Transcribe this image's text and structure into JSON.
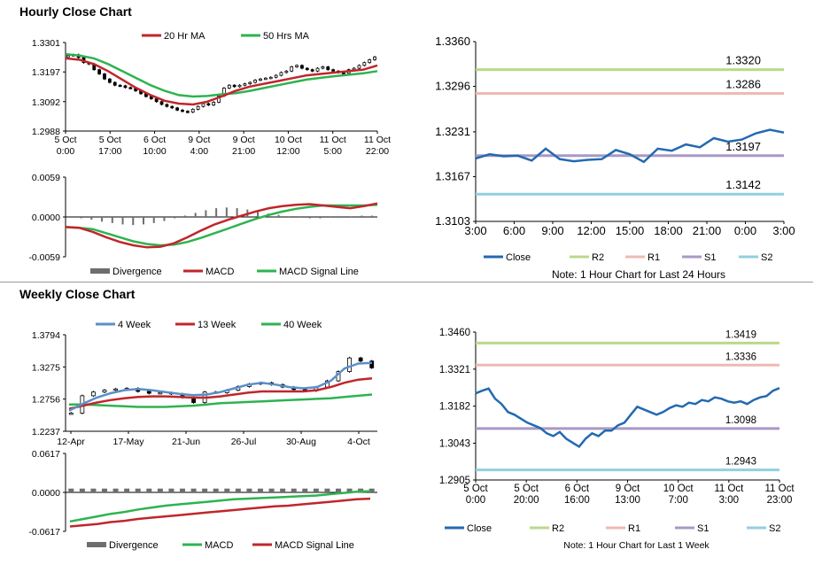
{
  "sections": {
    "hourly_title": "Hourly Close Chart",
    "weekly_title": "Weekly Close Chart"
  },
  "colors": {
    "ma_short": "#c0262b",
    "ma_long": "#2eb350",
    "ma_4wk": "#5b8fc9",
    "close": "#2369b0",
    "r2": "#b9d98a",
    "r1": "#efb9b3",
    "s1": "#a899c6",
    "s2": "#91cfdf",
    "divergence": "#6e6e6e"
  },
  "chart_data": [
    {
      "id": "hourly_price",
      "type": "line",
      "title": "",
      "legend": [
        "20 Hr MA",
        "50 Hrs MA"
      ],
      "legend_position": "top",
      "x_ticks": [
        [
          "5 Oct",
          "0:00"
        ],
        [
          "5 Oct",
          "17:00"
        ],
        [
          "6 Oct",
          "10:00"
        ],
        [
          "9 Oct",
          "4:00"
        ],
        [
          "9 Oct",
          "21:00"
        ],
        [
          "10 Oct",
          "12:00"
        ],
        [
          "11 Oct",
          "5:00"
        ],
        [
          "11 Oct",
          "22:00"
        ]
      ],
      "ylim": [
        1.2988,
        1.3301
      ],
      "y_ticks": [
        "1.3301",
        "1.3197",
        "1.3092",
        "1.2988"
      ],
      "candles": [
        1.3255,
        1.3258,
        1.3248,
        1.323,
        1.3225,
        1.3205,
        1.319,
        1.3172,
        1.316,
        1.315,
        1.3148,
        1.3142,
        1.314,
        1.313,
        1.312,
        1.311,
        1.3102,
        1.3092,
        1.3082,
        1.3075,
        1.307,
        1.3062,
        1.3058,
        1.3055,
        1.3065,
        1.3075,
        1.3085,
        1.308,
        1.309,
        1.3112,
        1.314,
        1.315,
        1.3145,
        1.315,
        1.3155,
        1.316,
        1.3168,
        1.3172,
        1.3175,
        1.3178,
        1.3185,
        1.3195,
        1.32,
        1.3215,
        1.322,
        1.321,
        1.3205,
        1.32,
        1.321,
        1.3215,
        1.3205,
        1.32,
        1.3195,
        1.3192,
        1.3205,
        1.321,
        1.322,
        1.323,
        1.324,
        1.325
      ],
      "series": [
        {
          "name": "20 Hr MA",
          "values": [
            1.3245,
            1.324,
            1.3225,
            1.32,
            1.317,
            1.314,
            1.3115,
            1.3095,
            1.3085,
            1.3082,
            1.3092,
            1.311,
            1.313,
            1.3145,
            1.3155,
            1.3165,
            1.3175,
            1.3185,
            1.319,
            1.3195,
            1.32,
            1.3205,
            1.322
          ]
        },
        {
          "name": "50 Hrs MA",
          "values": [
            1.326,
            1.3255,
            1.3245,
            1.3225,
            1.32,
            1.3175,
            1.315,
            1.313,
            1.3115,
            1.311,
            1.3112,
            1.3118,
            1.3122,
            1.313,
            1.314,
            1.315,
            1.316,
            1.317,
            1.3176,
            1.3182,
            1.3187,
            1.3192,
            1.32
          ]
        }
      ]
    },
    {
      "id": "hourly_macd",
      "type": "line",
      "title": "",
      "ylim": [
        -0.0059,
        0.0059
      ],
      "y_ticks": [
        "0.0059",
        "0.0000",
        "-0.0059"
      ],
      "legend": [
        "Divergence",
        "MACD",
        "MACD Signal Line"
      ],
      "legend_position": "bottom",
      "divergence": [
        0,
        -0.0002,
        -0.0004,
        -0.0007,
        -0.0009,
        -0.0011,
        -0.0012,
        -0.0011,
        -0.0009,
        -0.0006,
        -0.0002,
        0.0002,
        0.0006,
        0.001,
        0.0013,
        0.0014,
        0.0013,
        0.0011,
        0.0008,
        0.0005,
        0.0003,
        0.0001,
        -0.0001,
        -0.0002,
        -0.0002,
        -0.0001,
        0,
        0.0001,
        0.0002,
        0.0002
      ],
      "series": [
        {
          "name": "MACD",
          "values": [
            -0.0015,
            -0.0016,
            -0.0022,
            -0.003,
            -0.0037,
            -0.0042,
            -0.0045,
            -0.0044,
            -0.0039,
            -0.003,
            -0.002,
            -0.0011,
            -0.0004,
            0.0002,
            0.0008,
            0.0013,
            0.0016,
            0.0018,
            0.0019,
            0.0017,
            0.0015,
            0.0013,
            0.0016,
            0.002
          ]
        },
        {
          "name": "MACD Signal Line",
          "values": [
            -0.0015,
            -0.0016,
            -0.0018,
            -0.0024,
            -0.003,
            -0.0036,
            -0.004,
            -0.0042,
            -0.0041,
            -0.0037,
            -0.0031,
            -0.0024,
            -0.0017,
            -0.001,
            -0.0003,
            0.0003,
            0.0008,
            0.0012,
            0.0015,
            0.0017,
            0.0017,
            0.0017,
            0.0017,
            0.0018
          ]
        }
      ]
    },
    {
      "id": "hourly_levels",
      "type": "line",
      "title": "",
      "x_ticks": [
        "3:00",
        "6:00",
        "9:00",
        "12:00",
        "15:00",
        "18:00",
        "21:00",
        "0:00",
        "3:00"
      ],
      "ylim": [
        1.3103,
        1.336
      ],
      "y_ticks": [
        "1.3360",
        "1.3296",
        "1.3231",
        "1.3167",
        "1.3103"
      ],
      "levels": [
        {
          "name": "R2",
          "value": 1.332,
          "label": "1.3320"
        },
        {
          "name": "R1",
          "value": 1.3286,
          "label": "1.3286"
        },
        {
          "name": "S1",
          "value": 1.3197,
          "label": "1.3197"
        },
        {
          "name": "S2",
          "value": 1.3142,
          "label": "1.3142"
        }
      ],
      "series": [
        {
          "name": "Close",
          "values": [
            1.3193,
            1.3199,
            1.3196,
            1.3197,
            1.319,
            1.3207,
            1.3192,
            1.3189,
            1.3191,
            1.3192,
            1.3205,
            1.3199,
            1.3188,
            1.3207,
            1.3204,
            1.3213,
            1.3209,
            1.3222,
            1.3217,
            1.322,
            1.3229,
            1.3234,
            1.323
          ]
        }
      ],
      "legend": [
        "Close",
        "R2",
        "R1",
        "S1",
        "S2"
      ],
      "legend_position": "bottom",
      "note": "Note: 1 Hour Chart for Last 24 Hours"
    },
    {
      "id": "weekly_price",
      "type": "line",
      "title": "",
      "legend": [
        "4 Week",
        "13 Week",
        "40 Week"
      ],
      "legend_position": "top",
      "x_ticks": [
        "12-Apr",
        "17-May",
        "21-Jun",
        "26-Jul",
        "30-Aug",
        "4-Oct"
      ],
      "ylim": [
        1.2237,
        1.3794
      ],
      "y_ticks": [
        "1.3794",
        "1.3275",
        "1.2756",
        "1.2237"
      ],
      "candles": [
        1.253,
        1.281,
        1.287,
        1.29,
        1.292,
        1.293,
        1.288,
        1.285,
        1.286,
        1.284,
        1.278,
        1.27,
        1.287,
        1.286,
        1.29,
        1.296,
        1.3,
        1.302,
        1.299,
        1.295,
        1.291,
        1.289,
        1.295,
        1.305,
        1.32,
        1.342,
        1.337,
        1.326
      ],
      "series": [
        {
          "name": "4 Week",
          "values": [
            1.257,
            1.268,
            1.278,
            1.285,
            1.29,
            1.292,
            1.29,
            1.287,
            1.284,
            1.282,
            1.283,
            1.287,
            1.293,
            1.299,
            1.302,
            1.299,
            1.295,
            1.293,
            1.295,
            1.305,
            1.325,
            1.333,
            1.334
          ]
        },
        {
          "name": "13 Week",
          "values": [
            1.26,
            1.265,
            1.27,
            1.274,
            1.277,
            1.279,
            1.28,
            1.28,
            1.279,
            1.278,
            1.278,
            1.28,
            1.283,
            1.286,
            1.288,
            1.288,
            1.288,
            1.288,
            1.29,
            1.295,
            1.302,
            1.307,
            1.309
          ]
        },
        {
          "name": "40 Week",
          "values": [
            1.267,
            1.267,
            1.266,
            1.265,
            1.264,
            1.263,
            1.263,
            1.263,
            1.264,
            1.265,
            1.267,
            1.269,
            1.27,
            1.271,
            1.272,
            1.273,
            1.274,
            1.275,
            1.276,
            1.277,
            1.279,
            1.281,
            1.283
          ]
        }
      ]
    },
    {
      "id": "weekly_macd",
      "type": "line",
      "title": "",
      "ylim": [
        -0.0617,
        0.0617
      ],
      "y_ticks": [
        "0.0617",
        "0.0000",
        "-0.0617"
      ],
      "legend": [
        "Divergence",
        "MACD",
        "MACD Signal Line"
      ],
      "legend_position": "bottom",
      "divergence": [
        0.006,
        0.006,
        0.006,
        0.006,
        0.006,
        0.006,
        0.006,
        0.006,
        0.006,
        0.006,
        0.006,
        0.006,
        0.006,
        0.006,
        0.006,
        0.006,
        0.006,
        0.006,
        0.006,
        0.006,
        0.006,
        0.006,
        0.006,
        0.006,
        0.006,
        0.006,
        0.006,
        0.006
      ],
      "series": [
        {
          "name": "MACD",
          "values": [
            -0.046,
            -0.042,
            -0.038,
            -0.034,
            -0.031,
            -0.027,
            -0.024,
            -0.021,
            -0.019,
            -0.017,
            -0.015,
            -0.013,
            -0.011,
            -0.01,
            -0.009,
            -0.008,
            -0.007,
            -0.006,
            -0.005,
            -0.003,
            -0.001,
            0.001,
            0.002
          ]
        },
        {
          "name": "MACD Signal Line",
          "values": [
            -0.054,
            -0.052,
            -0.05,
            -0.047,
            -0.045,
            -0.042,
            -0.04,
            -0.038,
            -0.036,
            -0.034,
            -0.032,
            -0.03,
            -0.028,
            -0.026,
            -0.024,
            -0.022,
            -0.021,
            -0.019,
            -0.017,
            -0.015,
            -0.013,
            -0.011,
            -0.01
          ]
        }
      ]
    },
    {
      "id": "weekly_levels",
      "type": "line",
      "title": "",
      "x_ticks": [
        [
          "5 Oct",
          "0:00"
        ],
        [
          "5 Oct",
          "20:00"
        ],
        [
          "6 Oct",
          "16:00"
        ],
        [
          "9 Oct",
          "13:00"
        ],
        [
          "10 Oct",
          "7:00"
        ],
        [
          "11 Oct",
          "3:00"
        ],
        [
          "11 Oct",
          "23:00"
        ]
      ],
      "ylim": [
        1.2905,
        1.346
      ],
      "y_ticks": [
        "1.3460",
        "1.3321",
        "1.3182",
        "1.3043",
        "1.2905"
      ],
      "levels": [
        {
          "name": "R2",
          "value": 1.3419,
          "label": "1.3419"
        },
        {
          "name": "R1",
          "value": 1.3336,
          "label": "1.3336"
        },
        {
          "name": "S1",
          "value": 1.3098,
          "label": "1.3098"
        },
        {
          "name": "S2",
          "value": 1.2943,
          "label": "1.2943"
        }
      ],
      "series": [
        {
          "name": "Close",
          "values": [
            1.323,
            1.324,
            1.3248,
            1.321,
            1.319,
            1.316,
            1.315,
            1.3135,
            1.312,
            1.311,
            1.31,
            1.308,
            1.307,
            1.3085,
            1.306,
            1.3045,
            1.303,
            1.306,
            1.308,
            1.307,
            1.309,
            1.309,
            1.311,
            1.312,
            1.315,
            1.318,
            1.317,
            1.316,
            1.315,
            1.316,
            1.3175,
            1.3185,
            1.318,
            1.3195,
            1.319,
            1.3205,
            1.32,
            1.3215,
            1.321,
            1.32,
            1.3195,
            1.32,
            1.319,
            1.3205,
            1.3215,
            1.322,
            1.324,
            1.325
          ]
        }
      ],
      "legend": [
        "Close",
        "R2",
        "R1",
        "S1",
        "S2"
      ],
      "legend_position": "bottom",
      "note": "Note: 1 Hour Chart for Last 1 Week"
    }
  ]
}
